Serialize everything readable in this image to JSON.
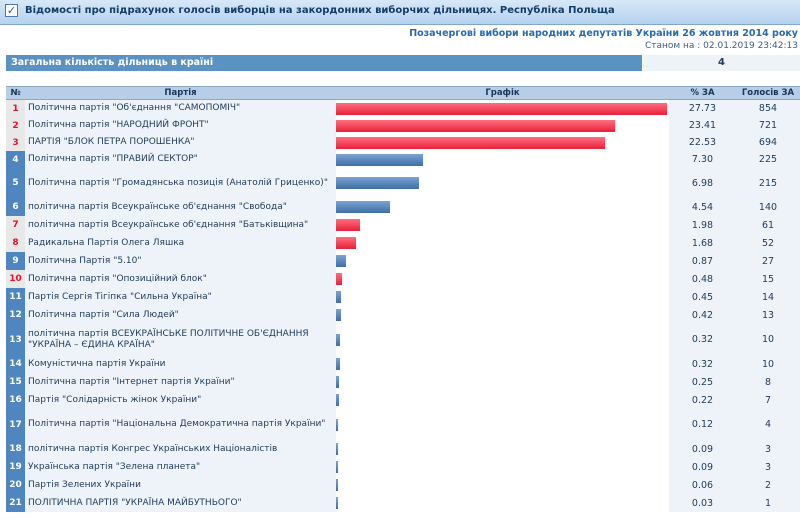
{
  "header": {
    "title": "Відомості про підрахунок голосів виборців на закордонних виборчих дільницях. Республіка Польща",
    "subtitle": "Позачергові вибори народних депутатів України 26 жовтня 2014 року",
    "timestamp": "Станом на : 02.01.2019 23:42:13"
  },
  "summary": {
    "label": "Загальна кількість дільниць в країні",
    "value": "4"
  },
  "table": {
    "headers": {
      "num": "№",
      "party": "Партія",
      "chart": "Графік",
      "pct": "% ЗА",
      "votes": "Голосів ЗА"
    },
    "rows": [
      {
        "num": "1",
        "name": "Політична партія \"Об'єднання \"САМОПОМІЧ\"",
        "pct": "27.73",
        "votes": "854",
        "value": 27.73,
        "color": "red"
      },
      {
        "num": "2",
        "name": "Політична партія \"НАРОДНИЙ ФРОНТ\"",
        "pct": "23.41",
        "votes": "721",
        "value": 23.41,
        "color": "red"
      },
      {
        "num": "3",
        "name": "ПАРТІЯ \"БЛОК ПЕТРА ПОРОШЕНКА\"",
        "pct": "22.53",
        "votes": "694",
        "value": 22.53,
        "color": "red"
      },
      {
        "num": "4",
        "name": "Політична партія \"ПРАВИЙ СЕКТОР\"",
        "pct": "7.30",
        "votes": "225",
        "value": 7.3,
        "color": "blue"
      },
      {
        "num": "5",
        "name": "Політична партія \"Громадянська позиція (Анатолій Гриценко)\"",
        "pct": "6.98",
        "votes": "215",
        "value": 6.98,
        "color": "blue"
      },
      {
        "num": "6",
        "name": "політична партія Всеукраїнське об'єднання \"Свобода\"",
        "pct": "4.54",
        "votes": "140",
        "value": 4.54,
        "color": "blue"
      },
      {
        "num": "7",
        "name": "політична партія Всеукраїнське об'єднання \"Батьківщина\"",
        "pct": "1.98",
        "votes": "61",
        "value": 1.98,
        "color": "red"
      },
      {
        "num": "8",
        "name": "Радикальна Партія Олега Ляшка",
        "pct": "1.68",
        "votes": "52",
        "value": 1.68,
        "color": "red"
      },
      {
        "num": "9",
        "name": "Політична Партія \"5.10\"",
        "pct": "0.87",
        "votes": "27",
        "value": 0.87,
        "color": "blue"
      },
      {
        "num": "10",
        "name": "Політична партія \"Опозиційний блок\"",
        "pct": "0.48",
        "votes": "15",
        "value": 0.48,
        "color": "red"
      },
      {
        "num": "11",
        "name": "Партія Сергія Тігіпка \"Сильна Україна\"",
        "pct": "0.45",
        "votes": "14",
        "value": 0.45,
        "color": "blue"
      },
      {
        "num": "12",
        "name": "Політична партія \"Сила Людей\"",
        "pct": "0.42",
        "votes": "13",
        "value": 0.42,
        "color": "blue"
      },
      {
        "num": "13",
        "name": "політична партія ВСЕУКРАЇНСЬКЕ ПОЛІТИЧНЕ ОБ'ЄДНАННЯ \"УКРАЇНА – ЄДИНА КРАЇНА\"",
        "pct": "0.32",
        "votes": "10",
        "value": 0.32,
        "color": "blue"
      },
      {
        "num": "14",
        "name": "Комуністична партія України",
        "pct": "0.32",
        "votes": "10",
        "value": 0.32,
        "color": "blue"
      },
      {
        "num": "15",
        "name": "Політична партія \"Інтернет партія України\"",
        "pct": "0.25",
        "votes": "8",
        "value": 0.25,
        "color": "blue"
      },
      {
        "num": "16",
        "name": "Партія \"Солідарність жінок України\"",
        "pct": "0.22",
        "votes": "7",
        "value": 0.22,
        "color": "blue"
      },
      {
        "num": "17",
        "name": "Політична партія \"Національна Демократична партія України\"",
        "pct": "0.12",
        "votes": "4",
        "value": 0.12,
        "color": "blue"
      },
      {
        "num": "18",
        "name": "політична партія Конгрес Українських Націоналістів",
        "pct": "0.09",
        "votes": "3",
        "value": 0.09,
        "color": "blue"
      },
      {
        "num": "19",
        "name": "Українська партія \"Зелена планета\"",
        "pct": "0.09",
        "votes": "3",
        "value": 0.09,
        "color": "blue"
      },
      {
        "num": "20",
        "name": "Партія Зелених України",
        "pct": "0.06",
        "votes": "2",
        "value": 0.06,
        "color": "blue"
      },
      {
        "num": "21",
        "name": "ПОЛІТИЧНА ПАРТІЯ \"УКРАЇНА МАЙБУТНЬОГО\"",
        "pct": "0.03",
        "votes": "1",
        "value": 0.03,
        "color": "blue"
      }
    ]
  },
  "chart_data": {
    "type": "bar",
    "categories": [
      "Політична партія \"Об'єднання \"САМОПОМІЧ\"",
      "Політична партія \"НАРОДНИЙ ФРОНТ\"",
      "ПАРТІЯ \"БЛОК ПЕТРА ПОРОШЕНКА\"",
      "Політична партія \"ПРАВИЙ СЕКТОР\"",
      "Політична партія \"Громадянська позиція (Анатолій Гриценко)\"",
      "політична партія Всеукраїнське об'єднання \"Свобода\"",
      "політична партія Всеукраїнське об'єднання \"Батьківщина\"",
      "Радикальна Партія Олега Ляшка",
      "Політична Партія \"5.10\"",
      "Політична партія \"Опозиційний блок\"",
      "Партія Сергія Тігіпка \"Сильна Україна\"",
      "Політична партія \"Сила Людей\"",
      "політична партія ВСЕУКРАЇНСЬКЕ ПОЛІТИЧНЕ ОБ'ЄДНАННЯ \"УКРАЇНА – ЄДИНА КРАЇНА\"",
      "Комуністична партія України",
      "Політична партія \"Інтернет партія України\"",
      "Партія \"Солідарність жінок України\"",
      "Політична партія \"Національна Демократична партія України\"",
      "політична партія Конгрес Українських Націоналістів",
      "Українська партія \"Зелена планета\"",
      "Партія Зелених України",
      "ПОЛІТИЧНА ПАРТІЯ \"УКРАЇНА МАЙБУТНЬОГО\""
    ],
    "values": [
      27.73,
      23.41,
      22.53,
      7.3,
      6.98,
      4.54,
      1.98,
      1.68,
      0.87,
      0.48,
      0.45,
      0.42,
      0.32,
      0.32,
      0.25,
      0.22,
      0.12,
      0.09,
      0.09,
      0.06,
      0.03
    ],
    "orientation": "horizontal",
    "title": "",
    "xlabel": "% ЗА",
    "ylabel": "",
    "colors": {
      "red": "#e8203a",
      "blue": "#3f6fa5"
    }
  }
}
